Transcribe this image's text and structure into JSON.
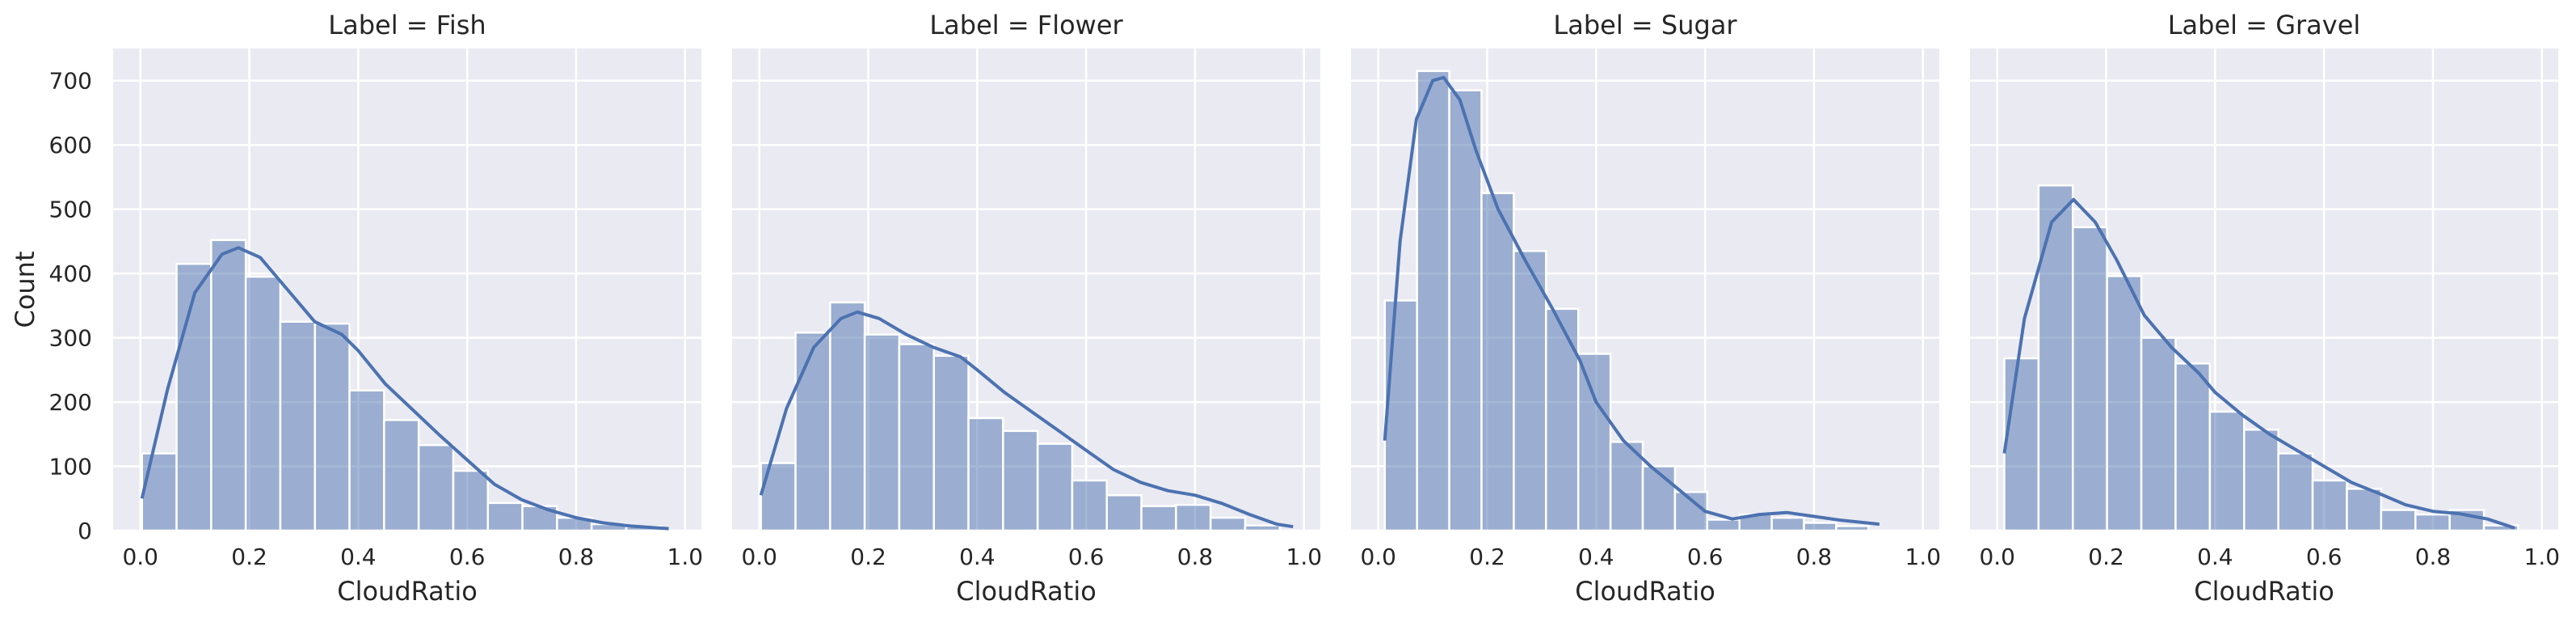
{
  "chart_data": [
    {
      "type": "bar",
      "title": "Label = Fish",
      "xlabel": "CloudRatio",
      "ylabel": "Count",
      "xlim": [
        -0.05,
        1.03
      ],
      "ylim": [
        0,
        750
      ],
      "xticks": [
        "0.0",
        "0.2",
        "0.4",
        "0.6",
        "0.8",
        "1.0"
      ],
      "yticks": [
        "0",
        "100",
        "200",
        "300",
        "400",
        "500",
        "600",
        "700"
      ],
      "grid": true,
      "bin_width": 0.0635,
      "bin_start": 0.003,
      "values": [
        120,
        415,
        452,
        395,
        325,
        322,
        218,
        172,
        133,
        93,
        43,
        38,
        20,
        10,
        6
      ],
      "kde": [
        [
          0.003,
          50
        ],
        [
          0.05,
          220
        ],
        [
          0.1,
          370
        ],
        [
          0.15,
          430
        ],
        [
          0.18,
          440
        ],
        [
          0.22,
          425
        ],
        [
          0.27,
          375
        ],
        [
          0.32,
          325
        ],
        [
          0.37,
          305
        ],
        [
          0.4,
          280
        ],
        [
          0.45,
          228
        ],
        [
          0.5,
          188
        ],
        [
          0.55,
          148
        ],
        [
          0.6,
          110
        ],
        [
          0.65,
          72
        ],
        [
          0.7,
          48
        ],
        [
          0.75,
          32
        ],
        [
          0.8,
          20
        ],
        [
          0.85,
          12
        ],
        [
          0.9,
          7
        ],
        [
          0.95,
          4
        ],
        [
          0.97,
          3
        ]
      ]
    },
    {
      "type": "bar",
      "title": "Label = Flower",
      "xlabel": "CloudRatio",
      "ylabel": "",
      "xlim": [
        -0.05,
        1.03
      ],
      "ylim": [
        0,
        750
      ],
      "xticks": [
        "0.0",
        "0.2",
        "0.4",
        "0.6",
        "0.8",
        "1.0"
      ],
      "yticks": [],
      "grid": true,
      "bin_width": 0.0635,
      "bin_start": 0.003,
      "values": [
        105,
        308,
        355,
        305,
        290,
        272,
        175,
        155,
        135,
        78,
        55,
        38,
        40,
        20,
        8
      ],
      "kde": [
        [
          0.003,
          55
        ],
        [
          0.05,
          190
        ],
        [
          0.1,
          285
        ],
        [
          0.15,
          330
        ],
        [
          0.18,
          340
        ],
        [
          0.22,
          330
        ],
        [
          0.27,
          305
        ],
        [
          0.32,
          285
        ],
        [
          0.37,
          270
        ],
        [
          0.4,
          250
        ],
        [
          0.45,
          215
        ],
        [
          0.5,
          185
        ],
        [
          0.55,
          155
        ],
        [
          0.6,
          125
        ],
        [
          0.65,
          95
        ],
        [
          0.7,
          75
        ],
        [
          0.75,
          62
        ],
        [
          0.8,
          55
        ],
        [
          0.85,
          42
        ],
        [
          0.9,
          25
        ],
        [
          0.95,
          10
        ],
        [
          0.98,
          6
        ]
      ]
    },
    {
      "type": "bar",
      "title": "Label = Sugar",
      "xlabel": "CloudRatio",
      "ylabel": "",
      "xlim": [
        -0.05,
        1.03
      ],
      "ylim": [
        0,
        750
      ],
      "xticks": [
        "0.0",
        "0.2",
        "0.4",
        "0.6",
        "0.8",
        "1.0"
      ],
      "yticks": [],
      "grid": true,
      "bin_width": 0.0592,
      "bin_start": 0.012,
      "values": [
        358,
        715,
        685,
        525,
        435,
        345,
        275,
        138,
        100,
        60,
        17,
        25,
        20,
        12,
        7
      ],
      "kde": [
        [
          0.012,
          140
        ],
        [
          0.04,
          450
        ],
        [
          0.07,
          640
        ],
        [
          0.1,
          700
        ],
        [
          0.12,
          705
        ],
        [
          0.15,
          670
        ],
        [
          0.18,
          590
        ],
        [
          0.22,
          500
        ],
        [
          0.27,
          420
        ],
        [
          0.32,
          345
        ],
        [
          0.37,
          265
        ],
        [
          0.4,
          200
        ],
        [
          0.45,
          140
        ],
        [
          0.5,
          100
        ],
        [
          0.55,
          65
        ],
        [
          0.6,
          30
        ],
        [
          0.65,
          18
        ],
        [
          0.7,
          25
        ],
        [
          0.75,
          28
        ],
        [
          0.8,
          22
        ],
        [
          0.85,
          16
        ],
        [
          0.92,
          10
        ]
      ]
    },
    {
      "type": "bar",
      "title": "Label = Gravel",
      "xlabel": "CloudRatio",
      "ylabel": "",
      "xlim": [
        -0.05,
        1.03
      ],
      "ylim": [
        0,
        750
      ],
      "xticks": [
        "0.0",
        "0.2",
        "0.4",
        "0.6",
        "0.8",
        "1.0"
      ],
      "yticks": [],
      "grid": true,
      "bin_width": 0.0629,
      "bin_start": 0.013,
      "values": [
        268,
        537,
        472,
        396,
        300,
        260,
        185,
        157,
        120,
        78,
        65,
        32,
        25,
        32,
        8
      ],
      "kde": [
        [
          0.013,
          120
        ],
        [
          0.05,
          330
        ],
        [
          0.1,
          480
        ],
        [
          0.14,
          515
        ],
        [
          0.18,
          480
        ],
        [
          0.22,
          420
        ],
        [
          0.27,
          335
        ],
        [
          0.32,
          285
        ],
        [
          0.37,
          245
        ],
        [
          0.4,
          215
        ],
        [
          0.45,
          180
        ],
        [
          0.5,
          150
        ],
        [
          0.55,
          125
        ],
        [
          0.6,
          100
        ],
        [
          0.65,
          75
        ],
        [
          0.7,
          58
        ],
        [
          0.75,
          40
        ],
        [
          0.8,
          30
        ],
        [
          0.85,
          26
        ],
        [
          0.9,
          18
        ],
        [
          0.95,
          4
        ]
      ]
    }
  ]
}
